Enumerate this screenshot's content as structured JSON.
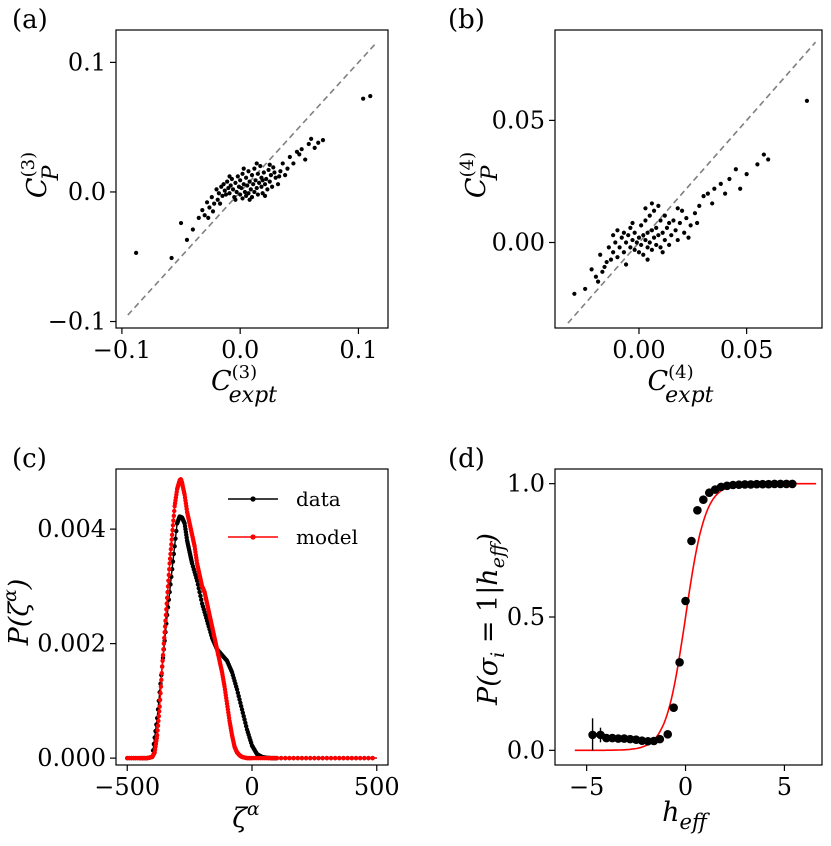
{
  "chart_data": [
    {
      "panel": "(a)",
      "type": "scatter",
      "xlabel": "C(3)expt",
      "ylabel": "C(3)P",
      "xlabel_parts": {
        "base": "C",
        "sup": "(3)",
        "sub": "expt"
      },
      "ylabel_parts": {
        "base": "C",
        "sup": "(3)",
        "sub": "P"
      },
      "xlim": [
        -0.105,
        0.125
      ],
      "ylim": [
        -0.105,
        0.125
      ],
      "xticks": [
        {
          "v": -0.1,
          "label": "−0.1"
        },
        {
          "v": 0.0,
          "label": "0.0"
        },
        {
          "v": 0.1,
          "label": "0.1"
        }
      ],
      "yticks": [
        {
          "v": -0.1,
          "label": "−0.1"
        },
        {
          "v": 0.0,
          "label": "0.0"
        },
        {
          "v": 0.1,
          "label": "0.1"
        }
      ],
      "identity_line": [
        -0.095,
        0.115
      ],
      "color": "#000000",
      "points": [
        [
          -0.088,
          -0.047
        ],
        [
          -0.058,
          -0.051
        ],
        [
          -0.05,
          -0.024
        ],
        [
          -0.045,
          -0.037
        ],
        [
          -0.04,
          -0.029
        ],
        [
          -0.035,
          -0.02
        ],
        [
          -0.032,
          -0.014
        ],
        [
          -0.03,
          -0.018
        ],
        [
          -0.028,
          -0.008
        ],
        [
          -0.026,
          -0.012
        ],
        [
          -0.024,
          -0.004
        ],
        [
          -0.022,
          -0.009
        ],
        [
          -0.02,
          0.002
        ],
        [
          -0.019,
          -0.006
        ],
        [
          -0.018,
          -0.001
        ],
        [
          -0.016,
          0.004
        ],
        [
          -0.015,
          -0.003
        ],
        [
          -0.014,
          0.006
        ],
        [
          -0.013,
          0.001
        ],
        [
          -0.012,
          -0.002
        ],
        [
          -0.011,
          0.008
        ],
        [
          -0.01,
          0.003
        ],
        [
          -0.009,
          -0.001
        ],
        [
          -0.008,
          0.005
        ],
        [
          -0.007,
          0.01
        ],
        [
          -0.006,
          0.002
        ],
        [
          -0.005,
          -0.004
        ],
        [
          -0.004,
          0.007
        ],
        [
          -0.003,
          0.0
        ],
        [
          -0.002,
          0.012
        ],
        [
          -0.001,
          0.004
        ],
        [
          0.0,
          -0.002
        ],
        [
          0.0,
          0.009
        ],
        [
          0.001,
          0.003
        ],
        [
          0.002,
          0.014
        ],
        [
          0.002,
          -0.005
        ],
        [
          0.003,
          0.006
        ],
        [
          0.004,
          0.0
        ],
        [
          0.005,
          0.011
        ],
        [
          0.005,
          -0.003
        ],
        [
          0.006,
          0.005
        ],
        [
          0.007,
          0.016
        ],
        [
          0.007,
          -0.001
        ],
        [
          0.008,
          0.008
        ],
        [
          0.009,
          0.002
        ],
        [
          0.01,
          0.013
        ],
        [
          0.01,
          -0.004
        ],
        [
          0.011,
          0.006
        ],
        [
          0.012,
          0.018
        ],
        [
          0.012,
          0.0
        ],
        [
          0.013,
          0.009
        ],
        [
          0.014,
          0.003
        ],
        [
          0.015,
          0.014
        ],
        [
          0.015,
          -0.002
        ],
        [
          0.016,
          0.007
        ],
        [
          0.017,
          0.02
        ],
        [
          0.018,
          0.004
        ],
        [
          0.018,
          0.011
        ],
        [
          0.019,
          -0.001
        ],
        [
          0.02,
          0.015
        ],
        [
          0.021,
          0.006
        ],
        [
          0.022,
          0.01
        ],
        [
          0.023,
          0.002
        ],
        [
          0.024,
          0.017
        ],
        [
          0.025,
          0.008
        ],
        [
          0.026,
          0.013
        ],
        [
          0.027,
          0.004
        ],
        [
          0.028,
          0.019
        ],
        [
          0.03,
          0.011
        ],
        [
          0.032,
          0.006
        ],
        [
          0.034,
          0.016
        ],
        [
          0.036,
          0.022
        ],
        [
          0.038,
          0.013
        ],
        [
          0.04,
          0.018
        ],
        [
          0.042,
          0.027
        ],
        [
          0.045,
          0.022
        ],
        [
          0.048,
          0.031
        ],
        [
          0.05,
          0.029
        ],
        [
          0.052,
          0.033
        ],
        [
          0.055,
          0.025
        ],
        [
          0.058,
          0.037
        ],
        [
          0.06,
          0.041
        ],
        [
          0.063,
          0.034
        ],
        [
          0.066,
          0.038
        ],
        [
          0.07,
          0.04
        ],
        [
          0.104,
          0.072
        ],
        [
          0.11,
          0.074
        ],
        [
          -0.027,
          -0.02
        ],
        [
          -0.023,
          -0.015
        ],
        [
          -0.017,
          -0.009
        ],
        [
          -0.009,
          0.012
        ],
        [
          -0.004,
          -0.006
        ],
        [
          0.003,
          0.018
        ],
        [
          0.008,
          -0.006
        ],
        [
          0.014,
          0.022
        ],
        [
          0.019,
          0.009
        ],
        [
          0.021,
          -0.003
        ],
        [
          0.025,
          0.021
        ],
        [
          0.029,
          0.015
        ],
        [
          0.033,
          0.012
        ]
      ]
    },
    {
      "panel": "(b)",
      "type": "scatter",
      "xlabel": "C(4)expt",
      "ylabel": "C(4)P",
      "xlabel_parts": {
        "base": "C",
        "sup": "(4)",
        "sub": "expt"
      },
      "ylabel_parts": {
        "base": "C",
        "sup": "(4)",
        "sub": "P"
      },
      "xlim": [
        -0.039,
        0.085
      ],
      "ylim": [
        -0.035,
        0.087
      ],
      "xticks": [
        {
          "v": 0.0,
          "label": "0.00"
        },
        {
          "v": 0.05,
          "label": "0.05"
        }
      ],
      "yticks": [
        {
          "v": 0.0,
          "label": "0.00"
        },
        {
          "v": 0.05,
          "label": "0.05"
        }
      ],
      "identity_line": [
        -0.033,
        0.082
      ],
      "color": "#000000",
      "points": [
        [
          -0.03,
          -0.021
        ],
        [
          -0.025,
          -0.019
        ],
        [
          -0.022,
          -0.011
        ],
        [
          -0.02,
          -0.014
        ],
        [
          -0.018,
          -0.005
        ],
        [
          -0.017,
          -0.012
        ],
        [
          -0.015,
          -0.008
        ],
        [
          -0.014,
          -0.002
        ],
        [
          -0.013,
          -0.007
        ],
        [
          -0.012,
          -0.004
        ],
        [
          -0.011,
          0.0
        ],
        [
          -0.01,
          -0.006
        ],
        [
          -0.009,
          -0.002
        ],
        [
          -0.008,
          0.002
        ],
        [
          -0.007,
          -0.004
        ],
        [
          -0.006,
          0.0
        ],
        [
          -0.006,
          -0.009
        ],
        [
          -0.005,
          0.003
        ],
        [
          -0.004,
          -0.002
        ],
        [
          -0.004,
          0.006
        ],
        [
          -0.003,
          0.001
        ],
        [
          -0.002,
          -0.003
        ],
        [
          -0.002,
          0.004
        ],
        [
          -0.001,
          0.0
        ],
        [
          0.0,
          -0.004
        ],
        [
          0.0,
          0.002
        ],
        [
          0.001,
          0.007
        ],
        [
          0.001,
          -0.001
        ],
        [
          0.002,
          0.003
        ],
        [
          0.002,
          -0.005
        ],
        [
          0.003,
          0.001
        ],
        [
          0.003,
          0.009
        ],
        [
          0.004,
          -0.002
        ],
        [
          0.004,
          0.004
        ],
        [
          0.005,
          0.0
        ],
        [
          0.005,
          0.011
        ],
        [
          0.006,
          -0.003
        ],
        [
          0.006,
          0.005
        ],
        [
          0.007,
          0.002
        ],
        [
          0.007,
          0.013
        ],
        [
          0.008,
          -0.001
        ],
        [
          0.008,
          0.006
        ],
        [
          0.009,
          0.003
        ],
        [
          0.01,
          0.009
        ],
        [
          0.01,
          -0.002
        ],
        [
          0.011,
          0.004
        ],
        [
          0.012,
          0.001
        ],
        [
          0.012,
          0.011
        ],
        [
          0.013,
          0.006
        ],
        [
          0.014,
          -0.001
        ],
        [
          0.015,
          0.003
        ],
        [
          0.016,
          0.009
        ],
        [
          0.017,
          0.005
        ],
        [
          0.018,
          0.001
        ],
        [
          0.019,
          0.008
        ],
        [
          0.02,
          0.013
        ],
        [
          0.021,
          0.004
        ],
        [
          0.022,
          0.01
        ],
        [
          0.024,
          0.007
        ],
        [
          0.026,
          0.012
        ],
        [
          0.028,
          0.015
        ],
        [
          0.03,
          0.019
        ],
        [
          0.032,
          0.02
        ],
        [
          0.035,
          0.022
        ],
        [
          0.038,
          0.024
        ],
        [
          0.042,
          0.026
        ],
        [
          0.045,
          0.03
        ],
        [
          0.05,
          0.028
        ],
        [
          0.055,
          0.032
        ],
        [
          0.058,
          0.036
        ],
        [
          0.06,
          0.034
        ],
        [
          0.078,
          0.058
        ],
        [
          -0.016,
          -0.01
        ],
        [
          -0.01,
          0.005
        ],
        [
          -0.003,
          0.008
        ],
        [
          0.004,
          -0.007
        ],
        [
          0.009,
          0.015
        ],
        [
          0.014,
          0.008
        ],
        [
          0.018,
          0.014
        ],
        [
          0.023,
          0.002
        ],
        [
          0.003,
          0.014
        ],
        [
          0.006,
          0.016
        ],
        [
          -0.007,
          0.004
        ],
        [
          0.011,
          -0.004
        ],
        [
          0.027,
          0.008
        ],
        [
          0.034,
          0.016
        ],
        [
          0.04,
          0.02
        ],
        [
          0.047,
          0.022
        ],
        [
          -0.019,
          -0.016
        ],
        [
          -0.012,
          0.003
        ]
      ]
    },
    {
      "panel": "(c)",
      "type": "line",
      "xlabel": "ζα",
      "ylabel": "P(ζα)",
      "xlim": [
        -545,
        545
      ],
      "ylim": [
        -0.00012,
        0.00505
      ],
      "xticks": [
        {
          "v": -500,
          "label": "−500"
        },
        {
          "v": 0,
          "label": "0"
        },
        {
          "v": 500,
          "label": "500"
        }
      ],
      "yticks": [
        {
          "v": 0.0,
          "label": "0.000"
        },
        {
          "v": 0.002,
          "label": "0.002"
        },
        {
          "v": 0.004,
          "label": "0.004"
        }
      ],
      "legend": "top-right",
      "series": [
        {
          "name": "data",
          "color": "#000000",
          "x": [
            -500,
            -450,
            -420,
            -400,
            -380,
            -360,
            -340,
            -320,
            -300,
            -290,
            -280,
            -270,
            -260,
            -250,
            -240,
            -220,
            -200,
            -180,
            -160,
            -140,
            -120,
            -100,
            -80,
            -60,
            -40,
            -20,
            0,
            20,
            40,
            60,
            80,
            100,
            200,
            300,
            400,
            500
          ],
          "y": [
            0,
            0,
            0,
            2e-05,
            0.0007,
            0.0016,
            0.0025,
            0.0033,
            0.0041,
            0.00422,
            0.0042,
            0.0041,
            0.0038,
            0.0036,
            0.0034,
            0.0031,
            0.0027,
            0.0024,
            0.0021,
            0.0019,
            0.0018,
            0.0017,
            0.0015,
            0.0012,
            0.00085,
            0.0005,
            0.00022,
            7e-05,
            2e-05,
            5e-06,
            0,
            0,
            0,
            0,
            0,
            0
          ]
        },
        {
          "name": "model",
          "color": "#ff0000",
          "x": [
            -500,
            -450,
            -420,
            -400,
            -390,
            -380,
            -370,
            -360,
            -350,
            -340,
            -330,
            -320,
            -310,
            -300,
            -290,
            -285,
            -280,
            -270,
            -260,
            -250,
            -240,
            -230,
            -220,
            -210,
            -200,
            -190,
            -180,
            -170,
            -160,
            -150,
            -140,
            -130,
            -120,
            -110,
            -100,
            -90,
            -80,
            -70,
            -60,
            -50,
            -40,
            -20,
            0,
            50,
            100,
            200,
            300,
            400,
            500
          ],
          "y": [
            0,
            0,
            0,
            2e-05,
            0.0001,
            0.0004,
            0.0009,
            0.0016,
            0.0022,
            0.0028,
            0.0034,
            0.0039,
            0.0044,
            0.0047,
            0.00485,
            0.00487,
            0.0048,
            0.0046,
            0.0043,
            0.0041,
            0.0039,
            0.0037,
            0.0034,
            0.0032,
            0.003,
            0.0029,
            0.0027,
            0.0025,
            0.0023,
            0.0021,
            0.0019,
            0.0017,
            0.0015,
            0.00125,
            0.00095,
            0.00065,
            0.0004,
            0.0002,
            0.0001,
            5e-05,
            2e-05,
            0,
            0,
            0,
            0,
            0,
            0,
            0,
            0
          ]
        }
      ]
    },
    {
      "panel": "(d)",
      "type": "scatter",
      "xlabel": "heff",
      "ylabel": "P(σi=1|heff)",
      "xlim": [
        -6.6,
        6.9
      ],
      "ylim": [
        -0.055,
        1.055
      ],
      "xticks": [
        {
          "v": -5,
          "label": "−5"
        },
        {
          "v": 0,
          "label": "0"
        },
        {
          "v": 5,
          "label": "5"
        }
      ],
      "yticks": [
        {
          "v": 0.0,
          "label": "0.0"
        },
        {
          "v": 0.5,
          "label": "0.5"
        },
        {
          "v": 1.0,
          "label": "1.0"
        }
      ],
      "points_color": "#000000",
      "curve_color": "#ff0000",
      "curve_x": [
        -5.6,
        6.6
      ],
      "points": [
        [
          -4.7,
          0.058
        ],
        [
          -4.3,
          0.058
        ],
        [
          -4.0,
          0.046
        ],
        [
          -3.7,
          0.046
        ],
        [
          -3.4,
          0.044
        ],
        [
          -3.1,
          0.044
        ],
        [
          -2.8,
          0.042
        ],
        [
          -2.5,
          0.04
        ],
        [
          -2.2,
          0.036
        ],
        [
          -1.9,
          0.034
        ],
        [
          -1.6,
          0.035
        ],
        [
          -1.3,
          0.042
        ],
        [
          -0.9,
          0.06
        ],
        [
          -0.6,
          0.16
        ],
        [
          -0.3,
          0.33
        ],
        [
          0.0,
          0.56
        ],
        [
          0.3,
          0.785
        ],
        [
          0.6,
          0.9
        ],
        [
          0.9,
          0.94
        ],
        [
          1.2,
          0.966
        ],
        [
          1.5,
          0.978
        ],
        [
          1.8,
          0.988
        ],
        [
          2.1,
          0.992
        ],
        [
          2.4,
          0.995
        ],
        [
          2.7,
          0.996
        ],
        [
          3.0,
          0.997
        ],
        [
          3.3,
          0.997
        ],
        [
          3.6,
          0.998
        ],
        [
          3.9,
          0.998
        ],
        [
          4.2,
          0.998
        ],
        [
          4.5,
          0.999
        ],
        [
          4.8,
          0.999
        ],
        [
          5.1,
          0.999
        ],
        [
          5.4,
          0.999
        ]
      ],
      "error_bars": [
        {
          "x": -4.7,
          "low": -0.0,
          "high": 0.12
        },
        {
          "x": -4.3,
          "low": 0.03,
          "high": 0.085
        }
      ]
    }
  ]
}
